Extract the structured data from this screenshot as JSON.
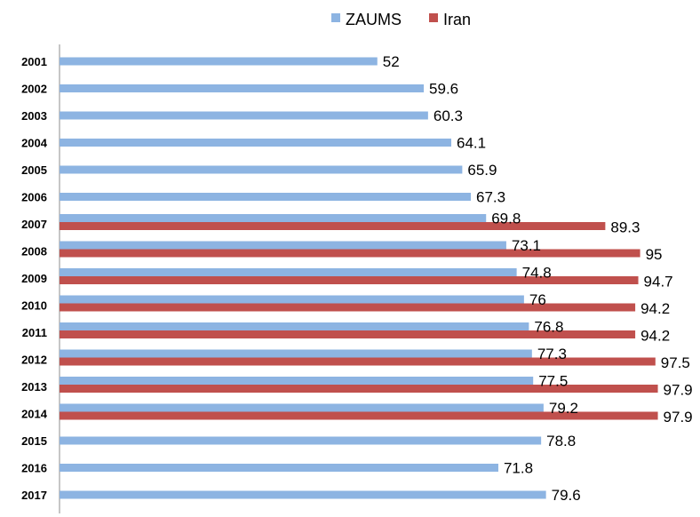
{
  "chart_data": {
    "type": "bar",
    "orientation": "horizontal",
    "categories": [
      "2001",
      "2002",
      "2003",
      "2004",
      "2005",
      "2006",
      "2007",
      "2008",
      "2009",
      "2010",
      "2011",
      "2012",
      "2013",
      "2014",
      "2015",
      "2016",
      "2017"
    ],
    "series": [
      {
        "name": "ZAUMS",
        "color": "#8DB4E2",
        "values": [
          52,
          59.6,
          60.3,
          64.1,
          65.9,
          67.3,
          69.8,
          73.1,
          74.8,
          76,
          76.8,
          77.3,
          77.5,
          79.2,
          78.8,
          71.8,
          79.6
        ]
      },
      {
        "name": "Iran",
        "color": "#C0504D",
        "values": [
          null,
          null,
          null,
          null,
          null,
          null,
          89.3,
          95,
          94.7,
          94.2,
          94.2,
          97.5,
          97.9,
          97.9,
          null,
          null,
          null
        ]
      }
    ],
    "xlim": [
      0,
      100
    ],
    "grid": false,
    "legend_position": "top"
  }
}
